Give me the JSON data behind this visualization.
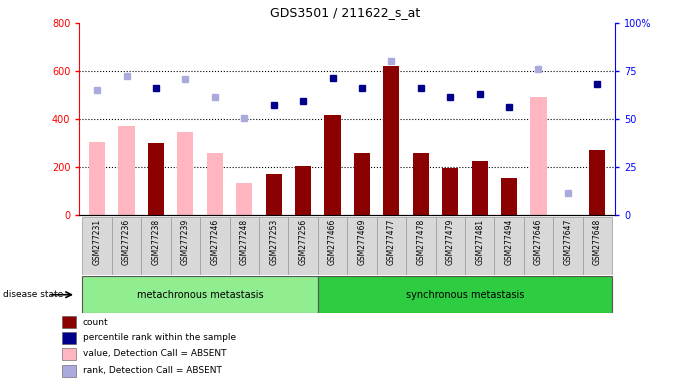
{
  "title": "GDS3501 / 211622_s_at",
  "samples": [
    "GSM277231",
    "GSM277236",
    "GSM277238",
    "GSM277239",
    "GSM277246",
    "GSM277248",
    "GSM277253",
    "GSM277256",
    "GSM277466",
    "GSM277469",
    "GSM277477",
    "GSM277478",
    "GSM277479",
    "GSM277481",
    "GSM277494",
    "GSM277646",
    "GSM277647",
    "GSM277648"
  ],
  "count_values": [
    null,
    null,
    300,
    null,
    null,
    null,
    170,
    205,
    415,
    260,
    620,
    260,
    195,
    225,
    155,
    null,
    null,
    270
  ],
  "absent_value_bars": [
    305,
    370,
    null,
    345,
    260,
    135,
    null,
    null,
    null,
    null,
    null,
    null,
    null,
    null,
    null,
    490,
    null,
    null
  ],
  "pct_present_left": [
    null,
    null,
    530,
    null,
    null,
    null,
    460,
    475,
    570,
    530,
    null,
    530,
    490,
    505,
    450,
    null,
    null,
    545
  ],
  "pct_absent_left": [
    520,
    580,
    null,
    565,
    490,
    405,
    null,
    null,
    null,
    null,
    640,
    null,
    null,
    null,
    null,
    610,
    90,
    null
  ],
  "groups": [
    {
      "label": "metachronous metastasis",
      "start": 0,
      "end": 8,
      "color": "#90EE90"
    },
    {
      "label": "synchronous metastasis",
      "start": 8,
      "end": 18,
      "color": "#2ECC40"
    }
  ],
  "ylim_left": [
    0,
    800
  ],
  "ylim_right": [
    0,
    100
  ],
  "yticks_left": [
    0,
    200,
    400,
    600,
    800
  ],
  "yticks_right": [
    0,
    25,
    50,
    75,
    100
  ],
  "bar_color_present": "#8B0000",
  "bar_color_absent_value": "#FFB6C1",
  "dot_color_present": "#00008B",
  "dot_color_absent_rank": "#AAAADD",
  "bar_width": 0.55,
  "legend_items": [
    {
      "label": "count",
      "color": "#8B0000"
    },
    {
      "label": "percentile rank within the sample",
      "color": "#00008B"
    },
    {
      "label": "value, Detection Call = ABSENT",
      "color": "#FFB6C1"
    },
    {
      "label": "rank, Detection Call = ABSENT",
      "color": "#AAAADD"
    }
  ]
}
